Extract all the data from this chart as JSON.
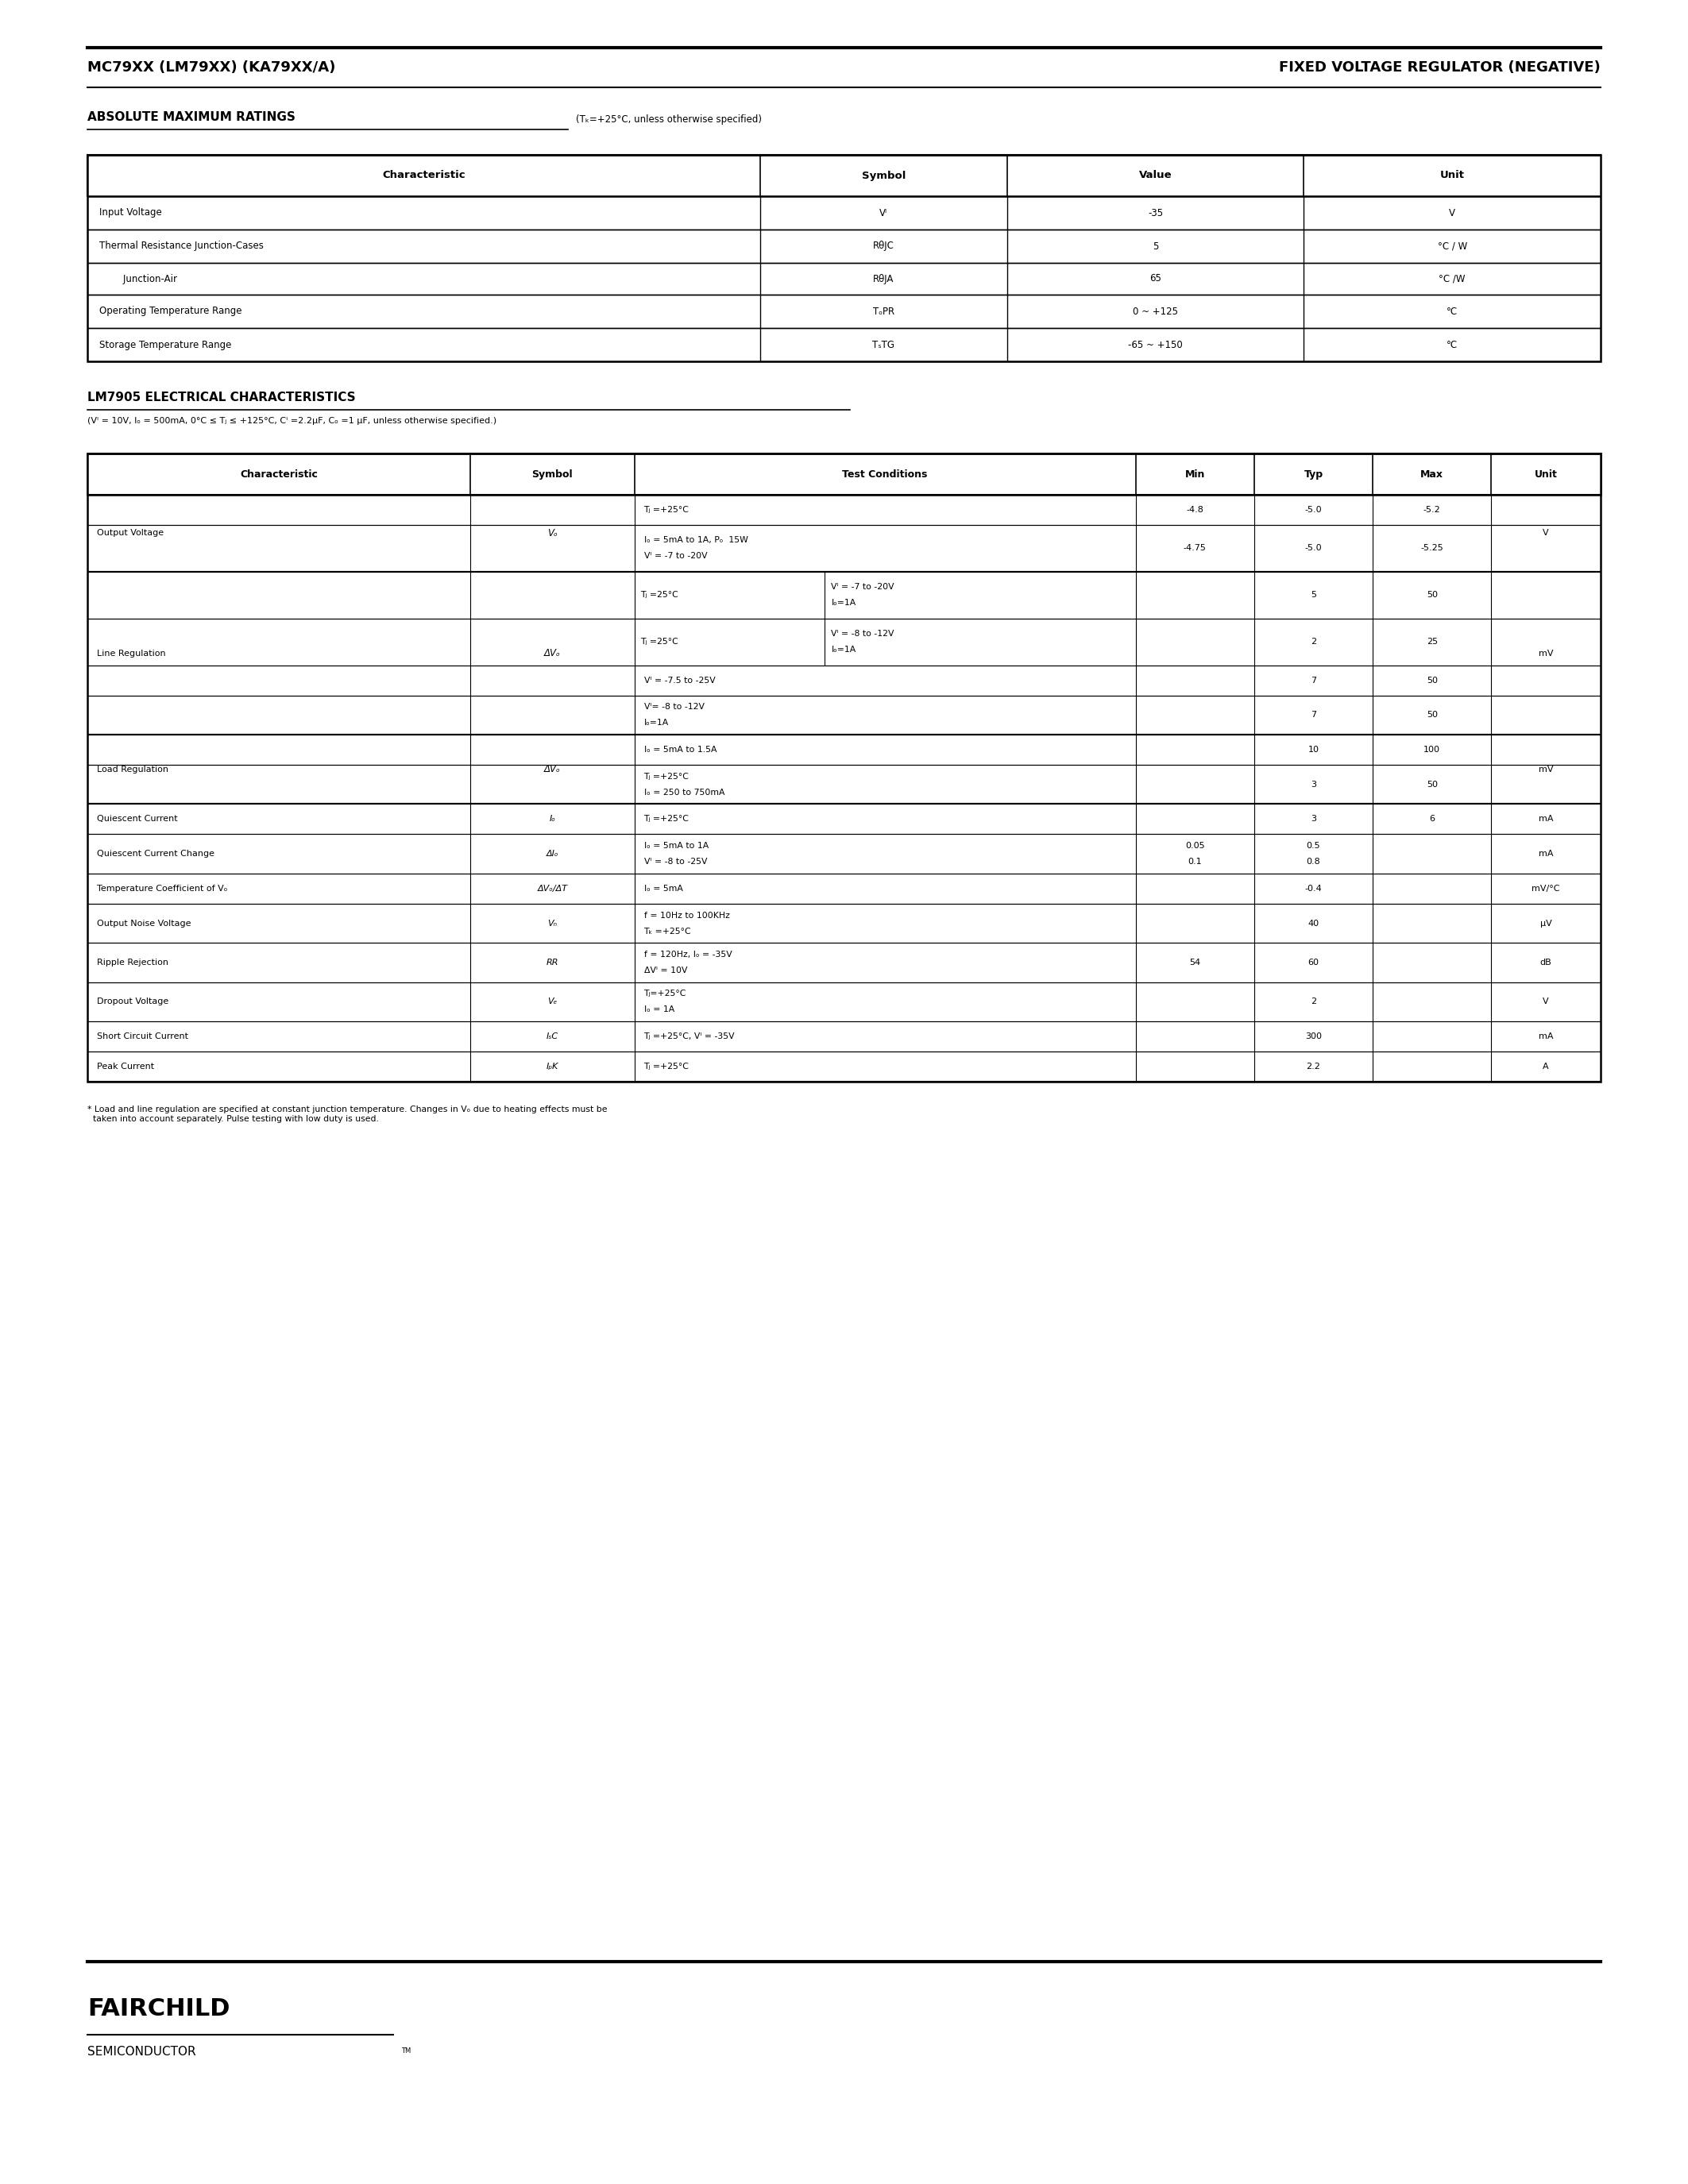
{
  "page_title_left": "MC79XX (LM79XX) (KA79XX/A)",
  "page_title_right": "FIXED VOLTAGE REGULATOR (NEGATIVE)",
  "section1_title": "ABSOLUTE MAXIMUM RATINGS",
  "section1_subtitle": "(Tₖ=+25°C, unless otherwise specified)",
  "abs_max_headers": [
    "Characteristic",
    "Symbol",
    "Value",
    "Unit"
  ],
  "section2_title": "LM7905 ELECTRICAL CHARACTERISTICS",
  "section2_subtitle": "(Vᴵ = 10V, Iₒ = 500mA, 0°C ≤ Tⱼ ≤ +125°C, Cᴵ =2.2μF, Cₒ =1 μF, unless otherwise specified.)",
  "elec_headers": [
    "Characteristic",
    "Symbol",
    "Test Conditions",
    "Min",
    "Typ",
    "Max",
    "Unit"
  ],
  "background_color": "#ffffff",
  "header_bg": "#e8e8e8",
  "line_color": "#000000",
  "text_color": "#000000",
  "logo_text": "FAIRCHILD",
  "logo_sub": "SEMICONDUCTOR"
}
